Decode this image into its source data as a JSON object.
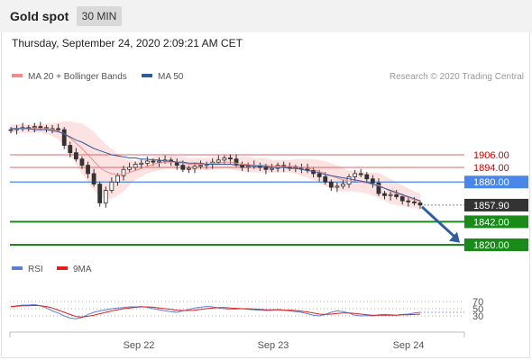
{
  "header": {
    "title": "Gold spot",
    "timeframe": "30 MIN",
    "datetime": "Thursday, September 24, 2020 2:09:21 AM CET"
  },
  "legend": {
    "ma20_label": "MA 20 + Bollinger Bands",
    "ma50_label": "MA 50",
    "credit": "Research © 2020 Trading Central"
  },
  "rsi_legend": {
    "rsi_label": "RSI",
    "ma_label": "9MA"
  },
  "colors": {
    "resistance": "#e06666",
    "pivot": "#4a86e8",
    "support": "#1a8a1a",
    "current": "#333333",
    "ma50": "#2e5c9e",
    "bollinger_fill": "#fde2e2",
    "arrow": "#2f5d9e",
    "rsi": "#5b7fd6",
    "rsi_ma": "#e02020"
  },
  "chart_data": [
    {
      "type": "line",
      "subtype": "candlestick",
      "x_ticks": [
        "Sep 22",
        "Sep 23",
        "Sep 24"
      ],
      "levels": [
        {
          "name": "resistance-2",
          "label": "1906.00",
          "value": 1906.0,
          "style": "resistance"
        },
        {
          "name": "resistance-1",
          "label": "1894.00",
          "value": 1894.0,
          "style": "resistance"
        },
        {
          "name": "pivot",
          "label": "1880.00",
          "value": 1880.0,
          "style": "pivot"
        },
        {
          "name": "current-price",
          "label": "1857.90",
          "value": 1857.9,
          "style": "current"
        },
        {
          "name": "support-1",
          "label": "1842.00",
          "value": 1842.0,
          "style": "support"
        },
        {
          "name": "support-2",
          "label": "1820.00",
          "value": 1820.0,
          "style": "support"
        }
      ],
      "price_closes": [
        1930,
        1931,
        1932,
        1932,
        1933,
        1932,
        1931,
        1931,
        1930,
        1915,
        1908,
        1902,
        1896,
        1888,
        1878,
        1860,
        1872,
        1880,
        1886,
        1892,
        1894,
        1897,
        1898,
        1900,
        1899,
        1900,
        1901,
        1899,
        1896,
        1892,
        1893,
        1895,
        1896,
        1897,
        1899,
        1901,
        1903,
        1902,
        1897,
        1894,
        1895,
        1896,
        1894,
        1892,
        1893,
        1896,
        1894,
        1893,
        1894,
        1893,
        1891,
        1888,
        1885,
        1880,
        1875,
        1876,
        1878,
        1885,
        1888,
        1887,
        1883,
        1879,
        1869,
        1867,
        1868,
        1866,
        1862,
        1861,
        1860,
        1858
      ],
      "ma20": [
        1931,
        1931,
        1931,
        1931,
        1931,
        1931,
        1931,
        1930,
        1929,
        1926,
        1922,
        1917,
        1912,
        1906,
        1900,
        1894,
        1890,
        1888,
        1887,
        1887,
        1889,
        1891,
        1893,
        1895,
        1897,
        1898,
        1899,
        1899,
        1899,
        1898,
        1897,
        1897,
        1897,
        1897,
        1898,
        1898,
        1899,
        1899,
        1898,
        1897,
        1897,
        1896,
        1896,
        1896,
        1895,
        1895,
        1895,
        1895,
        1895,
        1894,
        1893,
        1892,
        1890,
        1888,
        1886,
        1884,
        1882,
        1881,
        1881,
        1880,
        1879,
        1878,
        1877,
        1874,
        1871,
        1869,
        1867,
        1865,
        1863,
        1861
      ],
      "ma50": [
        1931,
        1931,
        1931,
        1931,
        1930,
        1930,
        1930,
        1929,
        1928,
        1926,
        1923,
        1920,
        1918,
        1915,
        1912,
        1910,
        1908,
        1906,
        1905,
        1904,
        1903,
        1903,
        1902,
        1902,
        1901,
        1901,
        1900,
        1900,
        1899,
        1899,
        1898,
        1898,
        1898,
        1897,
        1897,
        1897,
        1897,
        1897,
        1896,
        1896,
        1896,
        1895,
        1895,
        1895,
        1894,
        1894,
        1894,
        1893,
        1893,
        1892,
        1891,
        1890,
        1889,
        1887,
        1886,
        1885,
        1884,
        1883,
        1882,
        1881,
        1880,
        1878,
        1876,
        1874,
        1872,
        1870,
        1868,
        1866,
        1864,
        1862
      ],
      "band_width": [
        4,
        4,
        4,
        4,
        4,
        4,
        5,
        6,
        8,
        12,
        16,
        20,
        24,
        26,
        28,
        28,
        26,
        24,
        20,
        16,
        12,
        9,
        8,
        7,
        7,
        7,
        6,
        6,
        6,
        6,
        6,
        6,
        6,
        6,
        6,
        6,
        6,
        7,
        7,
        7,
        7,
        7,
        7,
        7,
        6,
        6,
        6,
        6,
        7,
        8,
        9,
        10,
        11,
        12,
        12,
        12,
        11,
        10,
        10,
        10,
        10,
        11,
        12,
        12,
        12,
        11,
        10,
        9,
        8,
        8
      ]
    },
    {
      "type": "line",
      "title": "RSI",
      "y_ticks": [
        "70",
        "50",
        "30"
      ],
      "rsi": [
        55,
        58,
        60,
        60,
        62,
        58,
        52,
        44,
        38,
        30,
        24,
        22,
        26,
        34,
        40,
        44,
        47,
        50,
        52,
        53,
        55,
        55,
        56,
        54,
        50,
        47,
        44,
        42,
        40,
        44,
        48,
        52,
        54,
        56,
        55,
        52,
        50,
        48,
        49,
        50,
        48,
        47,
        46,
        45,
        46,
        48,
        46,
        44,
        42,
        40,
        36,
        32,
        30,
        34,
        40,
        44,
        42,
        38,
        32,
        30,
        31,
        30,
        33,
        34,
        33,
        32,
        34,
        35,
        38,
        40
      ],
      "rsi_ma": [
        56,
        57,
        58,
        58,
        59,
        58,
        56,
        52,
        46,
        40,
        34,
        28,
        27,
        29,
        32,
        36,
        40,
        44,
        47,
        50,
        52,
        54,
        55,
        55,
        54,
        52,
        50,
        48,
        46,
        45,
        45,
        46,
        48,
        50,
        52,
        53,
        53,
        52,
        51,
        50,
        50,
        49,
        48,
        47,
        47,
        47,
        46,
        46,
        45,
        43,
        41,
        38,
        35,
        34,
        35,
        37,
        38,
        38,
        37,
        35,
        33,
        32,
        32,
        32,
        32,
        32,
        33,
        33,
        34,
        35
      ]
    }
  ]
}
